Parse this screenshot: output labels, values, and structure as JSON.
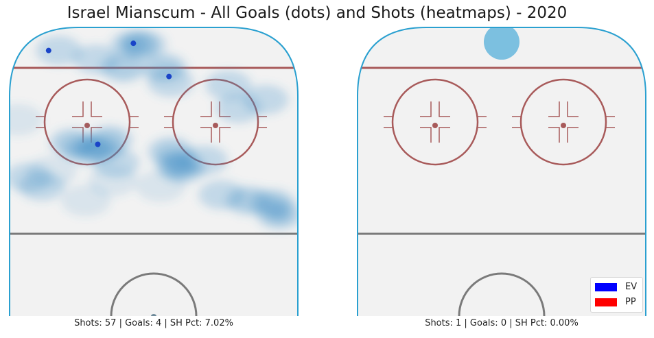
{
  "title": "Israel Mianscum - All Goals (dots) and Shots (heatmaps) - 2020",
  "chart_data": [
    {
      "type": "heatmap",
      "panel": "left",
      "caption": "Shots: 57 | Goals: 4 | SH Pct: 7.02%",
      "shots": 57,
      "goals": 4,
      "sh_pct": "7.02%",
      "xlim": [
        -42.5,
        42.5
      ],
      "ylim": [
        0,
        100
      ],
      "goal_points": [
        {
          "x": -31,
          "y": 92,
          "strength": "EV"
        },
        {
          "x": -6,
          "y": 94.5,
          "strength": "EV"
        },
        {
          "x": 4.5,
          "y": 83,
          "strength": "EV"
        },
        {
          "x": -16.5,
          "y": 59.5,
          "strength": "EV"
        }
      ],
      "shot_density": [
        {
          "x": -6,
          "y": 94,
          "level": 5
        },
        {
          "x": -3,
          "y": 94,
          "level": 3
        },
        {
          "x": -28,
          "y": 92,
          "level": 2
        },
        {
          "x": -17,
          "y": 89,
          "level": 2
        },
        {
          "x": -9,
          "y": 86,
          "level": 3
        },
        {
          "x": 3,
          "y": 86,
          "level": 3
        },
        {
          "x": 5,
          "y": 81,
          "level": 2
        },
        {
          "x": -24,
          "y": 60,
          "level": 3
        },
        {
          "x": -20,
          "y": 57.5,
          "level": 5
        },
        {
          "x": -16,
          "y": 58,
          "level": 4
        },
        {
          "x": -13,
          "y": 61,
          "level": 3
        },
        {
          "x": -11,
          "y": 53,
          "level": 2
        },
        {
          "x": 5,
          "y": 57,
          "level": 3
        },
        {
          "x": 7,
          "y": 53,
          "level": 4
        },
        {
          "x": 8.5,
          "y": 51,
          "level": 5
        },
        {
          "x": 15,
          "y": 54,
          "level": 2
        },
        {
          "x": 25,
          "y": 72,
          "level": 2
        },
        {
          "x": 22,
          "y": 80,
          "level": 2
        },
        {
          "x": 33,
          "y": 75,
          "level": 2
        },
        {
          "x": 35,
          "y": 39,
          "level": 4
        },
        {
          "x": 37,
          "y": 35,
          "level": 5
        },
        {
          "x": 28,
          "y": 40,
          "level": 3
        },
        {
          "x": 20,
          "y": 42,
          "level": 2
        },
        {
          "x": -33,
          "y": 45,
          "level": 2
        },
        {
          "x": -37,
          "y": 48,
          "level": 2
        },
        {
          "x": -30,
          "y": 50,
          "level": 1
        },
        {
          "x": -40,
          "y": 68,
          "level": 1
        },
        {
          "x": -12,
          "y": 47,
          "level": 1
        },
        {
          "x": 2,
          "y": 45,
          "level": 1
        },
        {
          "x": -20,
          "y": 40,
          "level": 1
        }
      ]
    },
    {
      "type": "heatmap",
      "panel": "right",
      "caption": "Shots: 1 | Goals: 0 | SH Pct: 0.00%",
      "shots": 1,
      "goals": 0,
      "sh_pct": "0.00%",
      "xlim": [
        -42.5,
        42.5
      ],
      "ylim": [
        0,
        100
      ],
      "goal_points": [],
      "shot_density": [
        {
          "x": 0,
          "y": 95,
          "level": 3
        }
      ]
    }
  ],
  "legend": {
    "items": [
      {
        "label": "EV",
        "color": "#0000ff"
      },
      {
        "label": "PP",
        "color": "#ff0000"
      }
    ]
  },
  "colors": {
    "heat": "#3d8fc7",
    "ice": "#f2f2f2",
    "boards": "#2aa0d0",
    "red_line": "#a85a5a",
    "blue_line": "#7a7a7a",
    "goal_dot": "#1a44c8"
  }
}
